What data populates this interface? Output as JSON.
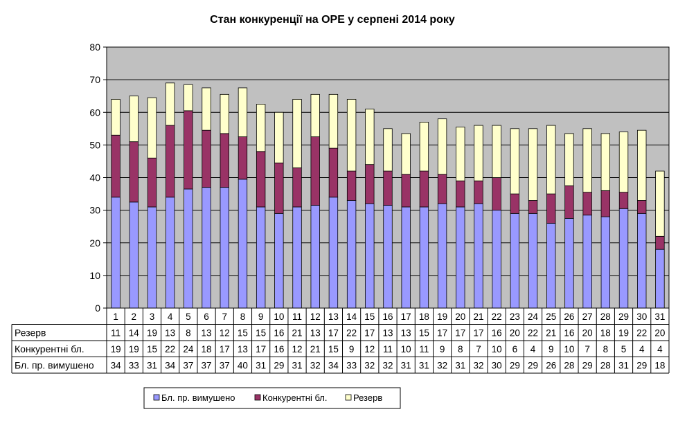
{
  "chart_data": {
    "type": "bar",
    "stacked": true,
    "title": "Стан конкуренції на ОРЕ  у серпені 2014 року",
    "xlabel": "",
    "ylabel": "",
    "ylim": [
      0,
      80
    ],
    "yticks": [
      0,
      10,
      20,
      30,
      40,
      50,
      60,
      70,
      80
    ],
    "grid": true,
    "legend_position": "bottom",
    "categories": [
      "1",
      "2",
      "3",
      "4",
      "5",
      "6",
      "7",
      "8",
      "9",
      "10",
      "11",
      "12",
      "13",
      "14",
      "15",
      "16",
      "17",
      "18",
      "19",
      "20",
      "21",
      "22",
      "23",
      "24",
      "25",
      "26",
      "27",
      "28",
      "29",
      "30",
      "31"
    ],
    "series": [
      {
        "name": "Бл. пр. вимушено",
        "table_label": "Бл. пр. вимушено",
        "color": "#9999FF",
        "values": [
          34,
          33,
          31,
          34,
          37,
          37,
          37,
          40,
          31,
          29,
          31,
          32,
          34,
          33,
          32,
          32,
          31,
          31,
          32,
          31,
          32,
          30,
          29,
          29,
          26,
          28,
          29,
          28,
          31,
          29,
          18
        ],
        "bar_values": [
          34,
          32.5,
          31,
          34,
          36.5,
          37,
          37,
          39.5,
          31,
          29,
          31,
          31.5,
          34,
          33,
          32,
          31.5,
          31,
          31,
          32,
          31,
          32,
          30,
          29,
          29,
          26,
          27.5,
          28.5,
          28,
          30.5,
          29,
          18
        ]
      },
      {
        "name": "Конкурентні бл.",
        "table_label": "Конкурентні бл.",
        "color": "#993366",
        "values": [
          19,
          19,
          15,
          22,
          24,
          18,
          17,
          13,
          17,
          16,
          12,
          21,
          15,
          9,
          12,
          11,
          10,
          11,
          9,
          8,
          7,
          10,
          6,
          4,
          9,
          10,
          7,
          8,
          5,
          4,
          4
        ],
        "bar_values": [
          19,
          18.5,
          15,
          22,
          24,
          17.5,
          16.5,
          13,
          17,
          15.5,
          12,
          21,
          15,
          9,
          12,
          10.5,
          10,
          11,
          9,
          8,
          7,
          10,
          6,
          4,
          9,
          10,
          7,
          8,
          5,
          4,
          4
        ]
      },
      {
        "name": "Резерв",
        "table_label": "Резерв",
        "color": "#FFFFCC",
        "values": [
          11,
          14,
          19,
          13,
          8,
          13,
          12,
          15,
          15,
          16,
          21,
          13,
          17,
          22,
          17,
          13,
          13,
          15,
          17,
          17,
          17,
          16,
          20,
          22,
          21,
          16,
          20,
          18,
          19,
          22,
          20
        ],
        "bar_values": [
          11,
          14,
          18.5,
          13,
          8,
          13,
          12,
          15,
          14.5,
          15.5,
          21,
          13,
          16.5,
          22,
          17,
          13,
          12.5,
          15,
          17,
          16.5,
          17,
          16,
          20,
          22,
          21,
          16,
          19.5,
          17.5,
          18.5,
          21.5,
          20
        ]
      }
    ]
  },
  "colors": {
    "plot_background": "#C0C0C0",
    "border": "#000000"
  }
}
